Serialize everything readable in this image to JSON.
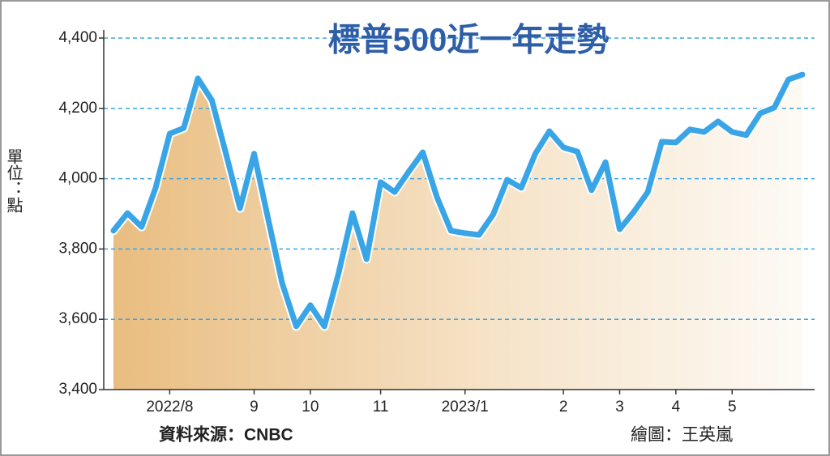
{
  "chart_data": {
    "type": "line",
    "title": "標普500近一年走勢",
    "y_label": "單位：點",
    "source": "資料來源：CNBC",
    "credit": "繪圖：王英嵐",
    "categories": [
      null,
      null,
      null,
      null,
      "2022/8",
      null,
      null,
      null,
      null,
      null,
      "9",
      null,
      null,
      null,
      "10",
      null,
      null,
      null,
      null,
      "11",
      null,
      null,
      null,
      null,
      null,
      "2023/1",
      null,
      null,
      null,
      null,
      null,
      null,
      "2",
      null,
      null,
      null,
      "3",
      null,
      null,
      null,
      "4",
      null,
      null,
      null,
      "5",
      null,
      null,
      null,
      null,
      null
    ],
    "values": [
      3852,
      3902,
      3863,
      3974,
      4128,
      4144,
      4285,
      4223,
      4071,
      3916,
      4071,
      3886,
      3702,
      3580,
      3640,
      3580,
      3730,
      3902,
      3771,
      3990,
      3962,
      4020,
      4075,
      3948,
      3852,
      3845,
      3840,
      3898,
      3997,
      3974,
      4071,
      4135,
      4089,
      4077,
      3967,
      4047,
      3856,
      3905,
      3962,
      4105,
      4103,
      4140,
      4133,
      4163,
      4133,
      4124,
      4186,
      4202,
      4282,
      4296
    ],
    "color": "#3aa5e6",
    "ylim": [
      3400,
      4400
    ],
    "yticks": [
      {
        "value": 3400,
        "label": "3,400"
      },
      {
        "value": 3600,
        "label": "3,600"
      },
      {
        "value": 3800,
        "label": "3,800"
      },
      {
        "value": 4000,
        "label": "4,000"
      },
      {
        "value": 4200,
        "label": "4,200"
      },
      {
        "value": 4400,
        "label": "4,400"
      }
    ],
    "grid": true
  }
}
